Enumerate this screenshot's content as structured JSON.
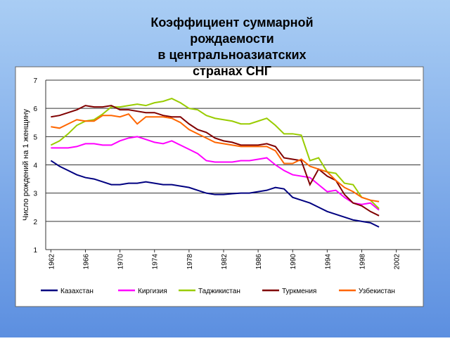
{
  "chart_data": {
    "type": "line",
    "title": [
      "Коэффициент суммарной",
      "рождаемости",
      "в центральноазиатских",
      "странах СНГ"
    ],
    "y_label": "Число рождений на 1 женщину",
    "x": [
      1962,
      1963,
      1964,
      1965,
      1966,
      1967,
      1968,
      1969,
      1970,
      1971,
      1972,
      1973,
      1974,
      1975,
      1976,
      1977,
      1978,
      1979,
      1980,
      1981,
      1982,
      1983,
      1984,
      1985,
      1986,
      1987,
      1988,
      1989,
      1990,
      1991,
      1992,
      1993,
      1994,
      1995,
      1996,
      1997,
      1998,
      1999,
      2000
    ],
    "series": [
      {
        "name": "Казахстан",
        "color": "#000080",
        "values": [
          4.15,
          3.95,
          3.8,
          3.65,
          3.55,
          3.5,
          3.4,
          3.3,
          3.3,
          3.35,
          3.35,
          3.4,
          3.35,
          3.3,
          3.3,
          3.25,
          3.2,
          3.1,
          3.0,
          2.95,
          2.95,
          2.98,
          3.0,
          3.0,
          3.05,
          3.1,
          3.2,
          3.15,
          2.85,
          2.75,
          2.65,
          2.5,
          2.35,
          2.25,
          2.15,
          2.05,
          2.0,
          1.95,
          1.8
        ]
      },
      {
        "name": "Киргизия",
        "color": "#ff00ff",
        "values": [
          4.6,
          4.6,
          4.6,
          4.65,
          4.75,
          4.75,
          4.7,
          4.7,
          4.85,
          4.95,
          5.0,
          4.9,
          4.8,
          4.75,
          4.85,
          4.7,
          4.55,
          4.4,
          4.15,
          4.1,
          4.1,
          4.1,
          4.15,
          4.15,
          4.2,
          4.25,
          4.0,
          3.8,
          3.65,
          3.6,
          3.55,
          3.3,
          3.05,
          3.1,
          2.85,
          2.65,
          2.6,
          2.65,
          2.4
        ]
      },
      {
        "name": "Таджикистан",
        "color": "#99cc00",
        "values": [
          4.7,
          4.85,
          5.1,
          5.4,
          5.55,
          5.6,
          5.8,
          6.05,
          6.05,
          6.1,
          6.15,
          6.1,
          6.2,
          6.25,
          6.35,
          6.2,
          6.0,
          5.95,
          5.75,
          5.65,
          5.6,
          5.55,
          5.45,
          5.45,
          5.55,
          5.65,
          5.4,
          5.1,
          5.1,
          5.05,
          4.15,
          4.25,
          3.75,
          3.7,
          3.35,
          3.3,
          2.85,
          2.75,
          2.45
        ]
      },
      {
        "name": "Туркмения",
        "color": "#800000",
        "values": [
          5.7,
          5.75,
          5.85,
          5.95,
          6.1,
          6.05,
          6.05,
          6.1,
          5.95,
          5.95,
          5.9,
          5.85,
          5.85,
          5.75,
          5.7,
          5.7,
          5.45,
          5.25,
          5.15,
          4.95,
          4.85,
          4.8,
          4.7,
          4.7,
          4.7,
          4.75,
          4.65,
          4.25,
          4.2,
          4.15,
          3.3,
          3.85,
          3.6,
          3.45,
          2.95,
          2.65,
          2.55,
          2.35,
          2.2
        ]
      },
      {
        "name": "Узбекистан",
        "color": "#ff6600",
        "values": [
          5.35,
          5.3,
          5.45,
          5.6,
          5.55,
          5.55,
          5.75,
          5.75,
          5.7,
          5.8,
          5.45,
          5.7,
          5.7,
          5.7,
          5.65,
          5.5,
          5.25,
          5.1,
          4.95,
          4.8,
          4.75,
          4.7,
          4.65,
          4.65,
          4.65,
          4.65,
          4.5,
          4.05,
          4.05,
          4.2,
          3.95,
          3.85,
          3.75,
          3.45,
          3.2,
          3.05,
          2.85,
          2.75,
          2.7
        ]
      }
    ],
    "xlim": [
      1961.4,
      2004.8
    ],
    "xticks": [
      1962,
      1966,
      1970,
      1974,
      1978,
      1982,
      1986,
      1990,
      1994,
      1998,
      2002
    ],
    "ylim": [
      1,
      7
    ],
    "yticks": [
      1,
      2,
      3,
      4,
      5,
      6,
      7
    ],
    "grid": true
  }
}
